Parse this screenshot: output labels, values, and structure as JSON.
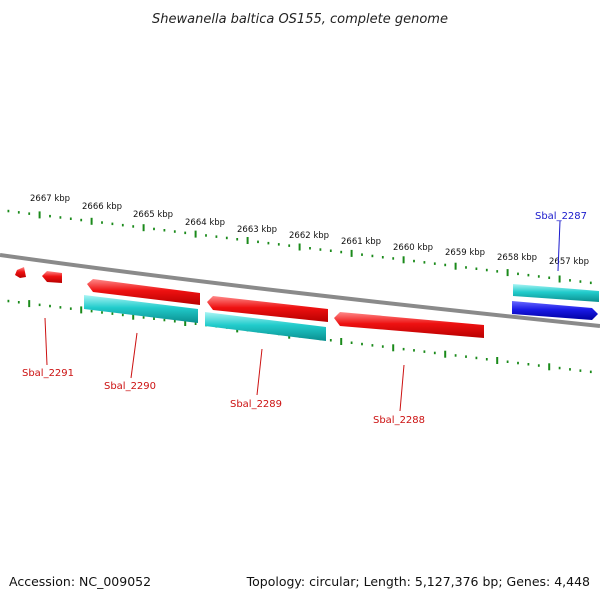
{
  "title": "Shewanella baltica OS155, complete genome",
  "footer": {
    "accession": "Accession: NC_009052",
    "summary": "Topology: circular; Length: 5,127,376 bp; Genes: 4,448"
  },
  "scale_labels": [
    "2667 kbp",
    "2666 kbp",
    "2665 kbp",
    "2664 kbp",
    "2663 kbp",
    "2662 kbp",
    "2661 kbp",
    "2660 kbp",
    "2659 kbp",
    "2658 kbp",
    "2657 kbp"
  ],
  "genes": [
    {
      "name": "Sbal_2287",
      "strand": "forward"
    },
    {
      "name": "Sbal_2288",
      "strand": "reverse"
    },
    {
      "name": "Sbal_2289",
      "strand": "reverse"
    },
    {
      "name": "Sbal_2290",
      "strand": "reverse"
    },
    {
      "name": "Sbal_2291",
      "strand": "reverse"
    }
  ],
  "colors": {
    "backbone": "#808080",
    "scale_ticks": "#1a8a1a",
    "reverse_cds": "#ee1111",
    "forward_cds": "#1a1ae6",
    "orf": "#22cccc",
    "reverse_label": "#cc1111",
    "forward_label": "#1a1acc"
  }
}
